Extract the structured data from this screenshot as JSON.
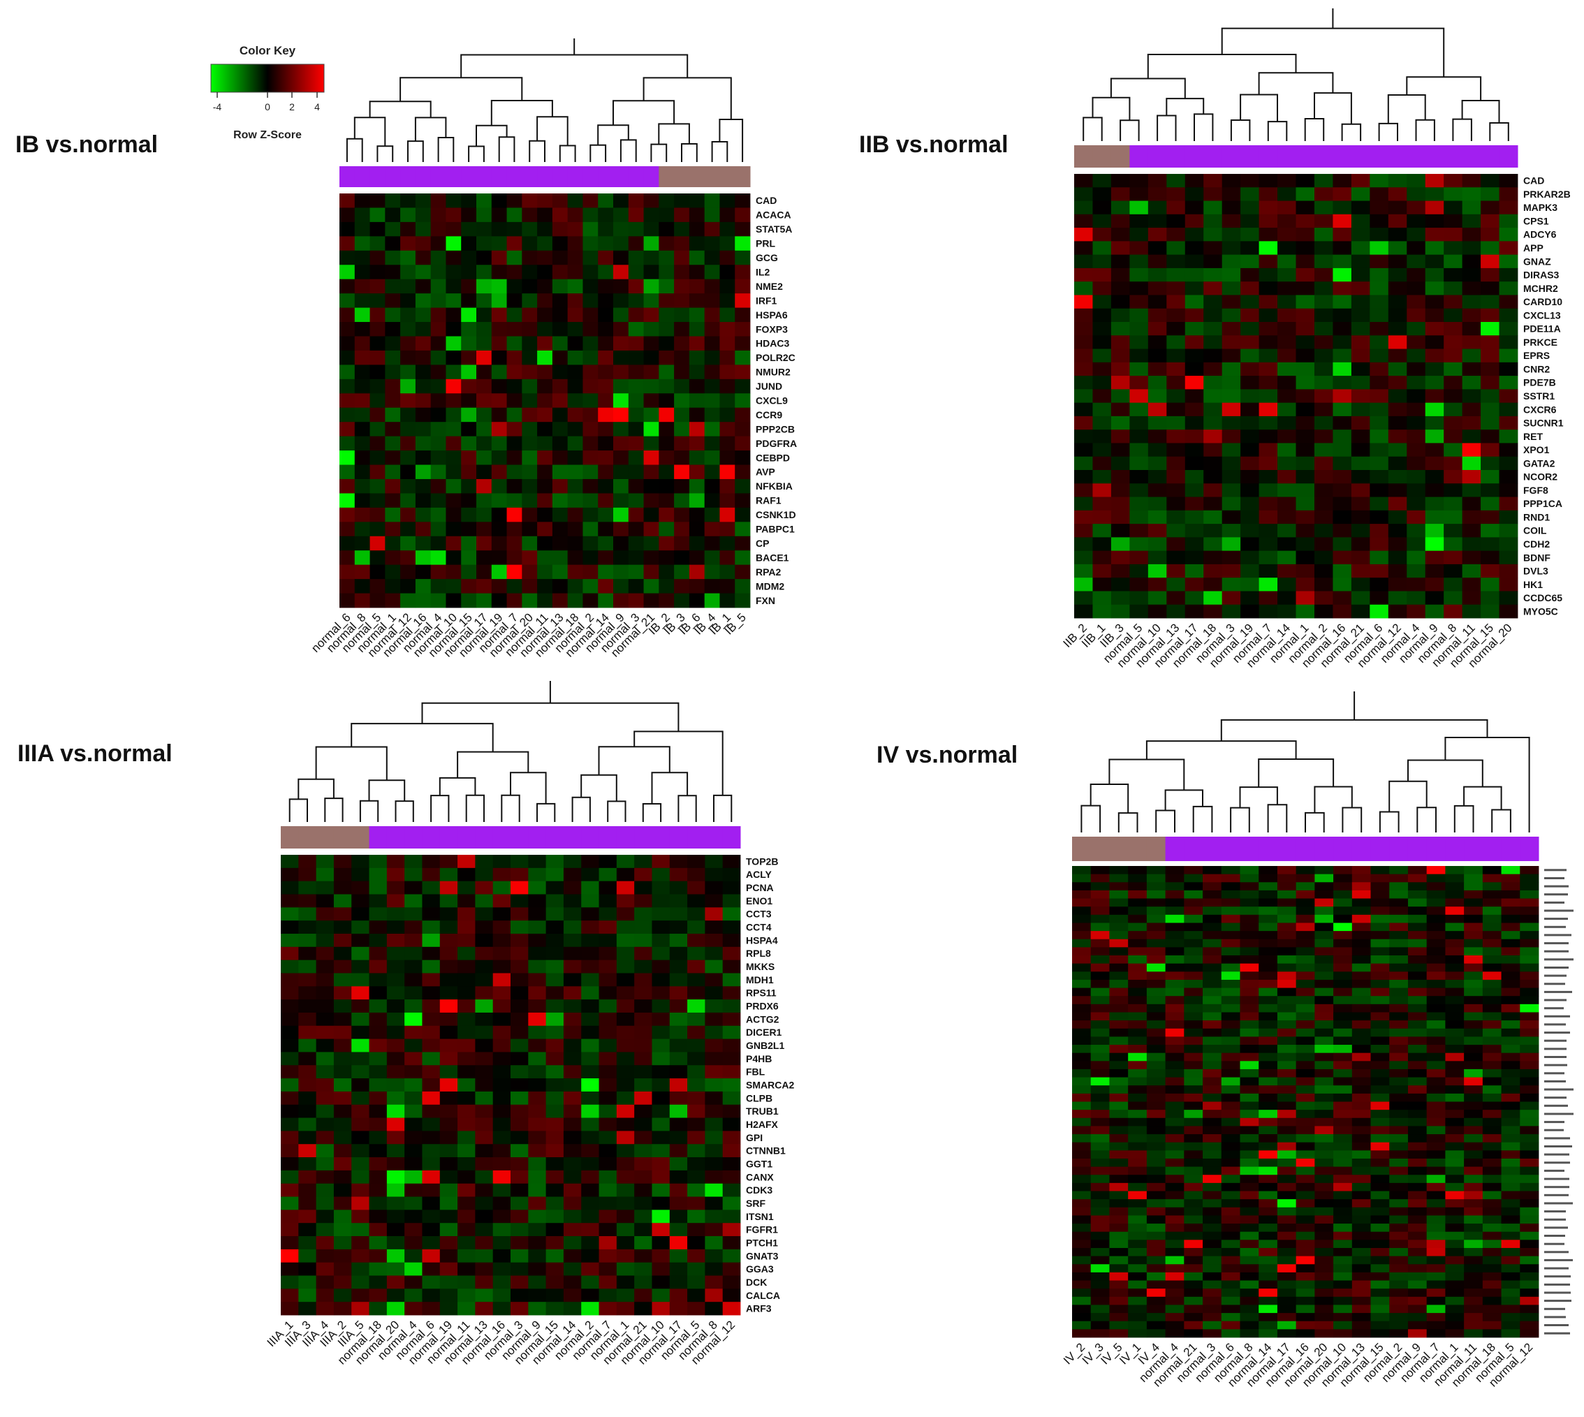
{
  "color_key": {
    "title": "Color Key",
    "xlabel": "Row Z-Score",
    "ticks": [
      "-4",
      "0",
      "2",
      "4"
    ],
    "colors": {
      "low": "#00ff00",
      "mid": "#000000",
      "high": "#ff0000"
    }
  },
  "colors": {
    "group_tumor": "#9a726b",
    "group_normal": "#a21ff0"
  },
  "chart_data": [
    {
      "type": "heatmap",
      "title": "IB vs.normal",
      "samples": [
        "normal_6",
        "normal_8",
        "normal_5",
        "normal_1",
        "normal_12",
        "normal_16",
        "normal_4",
        "normal_10",
        "normal_15",
        "normal_17",
        "normal_19",
        "normal_7",
        "normal_20",
        "normal_11",
        "normal_13",
        "normal_18",
        "normal_2",
        "normal_14",
        "normal_9",
        "normal_3",
        "normal_21",
        "IB_2",
        "IB_3",
        "IB_6",
        "IB_4",
        "IB_1",
        "IB_5"
      ],
      "groups": [
        "normal",
        "normal",
        "normal",
        "normal",
        "normal",
        "normal",
        "normal",
        "normal",
        "normal",
        "normal",
        "normal",
        "normal",
        "normal",
        "normal",
        "normal",
        "normal",
        "normal",
        "normal",
        "normal",
        "normal",
        "normal",
        "tumor",
        "tumor",
        "tumor",
        "tumor",
        "tumor",
        "tumor"
      ],
      "genes": [
        "CAD",
        "ACACA",
        "STAT5A",
        "PRL",
        "GCG",
        "IL2",
        "NME2",
        "IRF1",
        "HSPA6",
        "FOXP3",
        "HDAC3",
        "POLR2C",
        "NMUR2",
        "JUND",
        "CXCL9",
        "CCR9",
        "PPP2CB",
        "PDGFRA",
        "CEBPD",
        "AVP",
        "NFKBIA",
        "RAF1",
        "CSNK1D",
        "PABPC1",
        "CP",
        "BACE1",
        "RPA2",
        "MDM2",
        "FXN"
      ],
      "zlim": [
        -4,
        4
      ]
    },
    {
      "type": "heatmap",
      "title": "IIB vs.normal",
      "samples": [
        "IIB_2",
        "IIB_1",
        "IIB_3",
        "normal_5",
        "normal_10",
        "normal_13",
        "normal_17",
        "normal_18",
        "normal_3",
        "normal_19",
        "normal_7",
        "normal_14",
        "normal_1",
        "normal_2",
        "normal_16",
        "normal_21",
        "normal_6",
        "normal_12",
        "normal_4",
        "normal_9",
        "normal_8",
        "normal_11",
        "normal_15",
        "normal_20"
      ],
      "groups": [
        "tumor",
        "tumor",
        "tumor",
        "normal",
        "normal",
        "normal",
        "normal",
        "normal",
        "normal",
        "normal",
        "normal",
        "normal",
        "normal",
        "normal",
        "normal",
        "normal",
        "normal",
        "normal",
        "normal",
        "normal",
        "normal",
        "normal",
        "normal",
        "normal"
      ],
      "genes": [
        "CAD",
        "PRKAR2B",
        "MAPK3",
        "CPS1",
        "ADCY6",
        "APP",
        "GNAZ",
        "DIRAS3",
        "MCHR2",
        "CARD10",
        "CXCL13",
        "PDE11A",
        "PRKCE",
        "EPRS",
        "CNR2",
        "PDE7B",
        "SSTR1",
        "CXCR6",
        "SUCNR1",
        "RET",
        "XPO1",
        "GATA2",
        "NCOR2",
        "FGF8",
        "PPP1CA",
        "RND1",
        "COIL",
        "CDH2",
        "BDNF",
        "DVL3",
        "HK1",
        "CCDC65",
        "MYO5C"
      ],
      "zlim": [
        -4,
        4
      ]
    },
    {
      "type": "heatmap",
      "title": "IIIA vs.normal",
      "samples": [
        "IIIA_1",
        "IIIA_3",
        "IIIA_4",
        "IIIA_2",
        "IIIA_5",
        "normal_18",
        "normal_20",
        "normal_4",
        "normal_6",
        "normal_19",
        "normal_11",
        "normal_13",
        "normal_16",
        "normal_3",
        "normal_9",
        "normal_15",
        "normal_14",
        "normal_2",
        "normal_7",
        "normal_1",
        "normal_21",
        "normal_10",
        "normal_17",
        "normal_5",
        "normal_8",
        "normal_12"
      ],
      "groups": [
        "tumor",
        "tumor",
        "tumor",
        "tumor",
        "tumor",
        "normal",
        "normal",
        "normal",
        "normal",
        "normal",
        "normal",
        "normal",
        "normal",
        "normal",
        "normal",
        "normal",
        "normal",
        "normal",
        "normal",
        "normal",
        "normal",
        "normal",
        "normal",
        "normal",
        "normal",
        "normal"
      ],
      "genes": [
        "TOP2B",
        "ACLY",
        "PCNA",
        "ENO1",
        "CCT3",
        "CCT4",
        "HSPA4",
        "RPL8",
        "MKKS",
        "MDH1",
        "RPS11",
        "PRDX6",
        "ACTG2",
        "DICER1",
        "GNB2L1",
        "P4HB",
        "FBL",
        "SMARCA2",
        "CLPB",
        "TRUB1",
        "H2AFX",
        "GPI",
        "CTNNB1",
        "GGT1",
        "CANX",
        "CDK3",
        "SRF",
        "ITSN1",
        "FGFR1",
        "PTCH1",
        "GNAT3",
        "GGA3",
        "DCK",
        "CALCA",
        "ARF3"
      ],
      "zlim": [
        -4,
        4
      ]
    },
    {
      "type": "heatmap",
      "title": "IV vs.normal",
      "samples": [
        "IV_2",
        "IV_3",
        "IV_5",
        "IV_1",
        "IV_4",
        "normal_4",
        "normal_21",
        "normal_3",
        "normal_6",
        "normal_8",
        "normal_14",
        "normal_17",
        "normal_16",
        "normal_20",
        "normal_10",
        "normal_13",
        "normal_15",
        "normal_2",
        "normal_9",
        "normal_7",
        "normal_1",
        "normal_11",
        "normal_18",
        "normal_5",
        "normal_12"
      ],
      "groups": [
        "tumor",
        "tumor",
        "tumor",
        "tumor",
        "tumor",
        "normal",
        "normal",
        "normal",
        "normal",
        "normal",
        "normal",
        "normal",
        "normal",
        "normal",
        "normal",
        "normal",
        "normal",
        "normal",
        "normal",
        "normal",
        "normal",
        "normal",
        "normal",
        "normal",
        "normal"
      ],
      "gene_count": 58,
      "genes": [],
      "zlim": [
        -4,
        4
      ]
    }
  ]
}
